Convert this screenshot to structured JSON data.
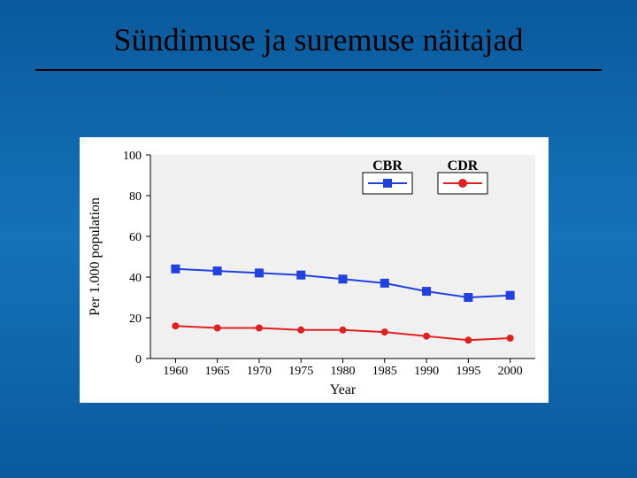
{
  "slide": {
    "title": "Sündimuse ja suremuse näitajad",
    "background_gradient": [
      "#0a5a9c",
      "#1572b8",
      "#0a5a9c"
    ]
  },
  "chart": {
    "type": "line-scatter",
    "panel_bg": "#ffffff",
    "plot_bg": "#f0f0f0",
    "axis_color": "#000000",
    "y_label": "Per 1.000 population",
    "x_label": "Year",
    "label_fontsize": 16,
    "tick_fontsize": 14,
    "x_ticks": [
      1960,
      1965,
      1970,
      1975,
      1980,
      1985,
      1990,
      1995,
      2000
    ],
    "y_ticks": [
      0,
      20,
      40,
      60,
      80,
      100
    ],
    "xlim": [
      1957,
      2003
    ],
    "ylim": [
      0,
      100
    ],
    "legend": {
      "box_stroke": "#000000",
      "box_fill": "#ffffff",
      "items": [
        {
          "label": "CBR",
          "color": "#2040e0",
          "marker": "square"
        },
        {
          "label": "CDR",
          "color": "#e02020",
          "marker": "circle"
        }
      ]
    },
    "series": [
      {
        "name": "CBR",
        "color": "#2040e0",
        "line_width": 2,
        "marker": "square",
        "marker_size": 5,
        "x": [
          1960,
          1965,
          1970,
          1975,
          1980,
          1985,
          1990,
          1995,
          2000
        ],
        "y": [
          44,
          43,
          42,
          41,
          39,
          37,
          33,
          30,
          31
        ]
      },
      {
        "name": "CDR",
        "color": "#e02020",
        "line_width": 2,
        "marker": "circle",
        "marker_size": 4,
        "x": [
          1960,
          1965,
          1970,
          1975,
          1980,
          1985,
          1990,
          1995,
          2000
        ],
        "y": [
          16,
          15,
          15,
          14,
          14,
          13,
          11,
          9,
          10
        ]
      }
    ]
  }
}
